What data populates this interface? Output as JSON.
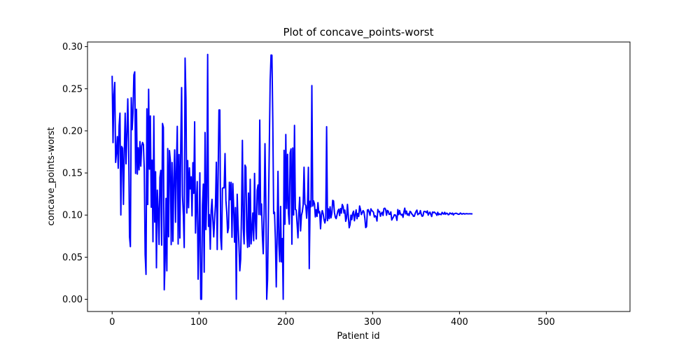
{
  "chart_data": {
    "type": "line",
    "title": "Plot of concave_points-worst",
    "xlabel": "Patient id",
    "ylabel": "concave_points-worst",
    "xlim": [
      -28.4,
      596.4
    ],
    "ylim": [
      -0.0145,
      0.3055
    ],
    "x_ticks": [
      0,
      100,
      200,
      300,
      400,
      500
    ],
    "x_tick_labels": [
      "0",
      "100",
      "200",
      "300",
      "400",
      "500"
    ],
    "y_ticks": [
      0.0,
      0.05,
      0.1,
      0.15,
      0.2,
      0.25,
      0.3
    ],
    "y_tick_labels": [
      "0.00",
      "0.05",
      "0.10",
      "0.15",
      "0.20",
      "0.25",
      "0.30"
    ],
    "grid": false,
    "legend": "none",
    "line_color": "#0000ff",
    "series": [
      {
        "x_start": 0,
        "x_step": 1,
        "values": [
          0.2654,
          0.186,
          0.243,
          0.2575,
          0.1625,
          0.1741,
          0.1932,
          0.1556,
          0.206,
          0.221,
          0.1001,
          0.1814,
          0.1794,
          0.1127,
          0.175,
          0.221,
          0.1609,
          0.1938,
          0.238,
          0.1872,
          0.0743,
          0.0625,
          0.2393,
          0.2014,
          0.2211,
          0.2664,
          0.2701,
          0.1495,
          0.2256,
          0.1486,
          0.1799,
          0.1537,
          0.1873,
          0.1581,
          0.1823,
          0.1862,
          0.1837,
          0.1546,
          0.0532,
          0.0296,
          0.2262,
          0.1126,
          0.2494,
          0.1545,
          0.2177,
          0.1093,
          0.1652,
          0.0683,
          0.2175,
          0.0917,
          0.1514,
          0.0374,
          0.1296,
          0.1062,
          0.0651,
          0.1447,
          0.1531,
          0.0643,
          0.2088,
          0.2041,
          0.0113,
          0.0458,
          0.1198,
          0.0338,
          0.179,
          0.0742,
          0.1767,
          0.1654,
          0.0649,
          0.1624,
          0.0688,
          0.1436,
          0.1774,
          0.0915,
          0.1547,
          0.2053,
          0.0656,
          0.1719,
          0.0728,
          0.1835,
          0.2514,
          0.1232,
          0.1001,
          0.0614,
          0.2864,
          0.2381,
          0.1024,
          0.1647,
          0.1087,
          0.1561,
          0.1311,
          0.1454,
          0.0991,
          0.1622,
          0.1258,
          0.2107,
          0.0787,
          0.1147,
          0.1398,
          0.0238,
          0.0753,
          0.1502,
          0.0,
          0.0,
          0.1117,
          0.1368,
          0.0322,
          0.1981,
          0.0828,
          0.1219,
          0.2907,
          0.0866,
          0.1005,
          0.0595,
          0.1052,
          0.1187,
          0.0944,
          0.0741,
          0.0952,
          0.1128,
          0.1627,
          0.0591,
          0.1442,
          0.2248,
          0.2248,
          0.0733,
          0.0591,
          0.1315,
          0.1326,
          0.1323,
          0.173,
          0.1176,
          0.1034,
          0.0791,
          0.0848,
          0.139,
          0.1183,
          0.1389,
          0.0736,
          0.1374,
          0.1072,
          0.0679,
          0.1089,
          0.0,
          0.1247,
          0.0902,
          0.0652,
          0.0338,
          0.0476,
          0.1046,
          0.1887,
          0.0844,
          0.0658,
          0.1593,
          0.1567,
          0.0806,
          0.0617,
          0.1262,
          0.0626,
          0.1425,
          0.0658,
          0.0834,
          0.1025,
          0.0696,
          0.1495,
          0.0921,
          0.0716,
          0.1295,
          0.1357,
          0.1006,
          0.2128,
          0.1004,
          0.1132,
          0.0755,
          0.0541,
          0.1023,
          0.1848,
          0.1155,
          0.0,
          0.0237,
          0.1045,
          0.1822,
          0.2599,
          0.29,
          0.2898,
          0.2127,
          0.1018,
          0.1034,
          0.0711,
          0.0147,
          0.0758,
          0.1519,
          0.066,
          0.0447,
          0.1103,
          0.0444,
          0.0722,
          0.0,
          0.1769,
          0.0891,
          0.1957,
          0.1078,
          0.1721,
          0.1027,
          0.0891,
          0.1738,
          0.1786,
          0.0654,
          0.1797,
          0.1001,
          0.2065,
          0.1068,
          0.1058,
          0.0894,
          0.073,
          0.1018,
          0.1212,
          0.0812,
          0.0996,
          0.1038,
          0.1124,
          0.1568,
          0.1129,
          0.1115,
          0.0963,
          0.1124,
          0.1567,
          0.0364,
          0.1165,
          0.1099,
          0.2538,
          0.1107,
          0.1168,
          0.1133,
          0.0978,
          0.1063,
          0.0984,
          0.1148,
          0.1026,
          0.1041,
          0.0837,
          0.1002,
          0.1053,
          0.1014,
          0.0948,
          0.0906,
          0.0961,
          0.2049,
          0.0933,
          0.1075,
          0.0957,
          0.1099,
          0.0967,
          0.102,
          0.1175,
          0.1168,
          0.1029,
          0.0975,
          0.0958,
          0.1003,
          0.1051,
          0.1069,
          0.0994,
          0.1077,
          0.1023,
          0.1126,
          0.1102,
          0.1024,
          0.1059,
          0.0926,
          0.0968,
          0.1127,
          0.099,
          0.0849,
          0.0887,
          0.0999,
          0.0946,
          0.1021,
          0.1046,
          0.0932,
          0.1003,
          0.1061,
          0.0956,
          0.1019,
          0.0985,
          0.1108,
          0.1067,
          0.1006,
          0.1026,
          0.1053,
          0.1038,
          0.0966,
          0.0851,
          0.0863,
          0.1061,
          0.1064,
          0.1035,
          0.0997,
          0.1074,
          0.1053,
          0.1046,
          0.1032,
          0.0977,
          0.0992,
          0.0979,
          0.0929,
          0.1066,
          0.1039,
          0.1043,
          0.0986,
          0.1019,
          0.1034,
          0.0995,
          0.1077,
          0.1082,
          0.1066,
          0.0998,
          0.1055,
          0.1046,
          0.1008,
          0.1009,
          0.1038,
          0.0941,
          0.0962,
          0.0978,
          0.1003,
          0.1002,
          0.0984,
          0.0937,
          0.1065,
          0.1005,
          0.1054,
          0.1013,
          0.1,
          0.1009,
          0.0973,
          0.1037,
          0.1082,
          0.1014,
          0.1047,
          0.1001,
          0.1015,
          0.0994,
          0.1044,
          0.1036,
          0.1015,
          0.1004,
          0.0985,
          0.0986,
          0.1019,
          0.1043,
          0.1059,
          0.1004,
          0.1016,
          0.1017,
          0.1053,
          0.1009,
          0.0986,
          0.0991,
          0.1042,
          0.1044,
          0.1039,
          0.1028,
          0.1049,
          0.0999,
          0.1023,
          0.1035,
          0.1007,
          0.0983,
          0.1036,
          0.1029,
          0.1036,
          0.1025,
          0.1016,
          0.0997,
          0.1033,
          0.1003,
          0.1015,
          0.1009,
          0.1005,
          0.1032,
          0.1018,
          0.1011,
          0.1033,
          0.101,
          0.1022,
          0.102,
          0.1004,
          0.1007,
          0.1025,
          0.1019,
          0.1012,
          0.1023,
          0.1001,
          0.1016,
          0.1018,
          0.1022,
          0.1018,
          0.1013,
          0.1009,
          0.1012,
          0.1024,
          0.1016,
          0.1011,
          0.1017,
          0.1018,
          0.1012,
          0.1015,
          0.1017,
          0.1016,
          0.1014,
          0.1015,
          0.1016,
          0.1015,
          0.1015,
          0.1015
        ]
      }
    ]
  }
}
